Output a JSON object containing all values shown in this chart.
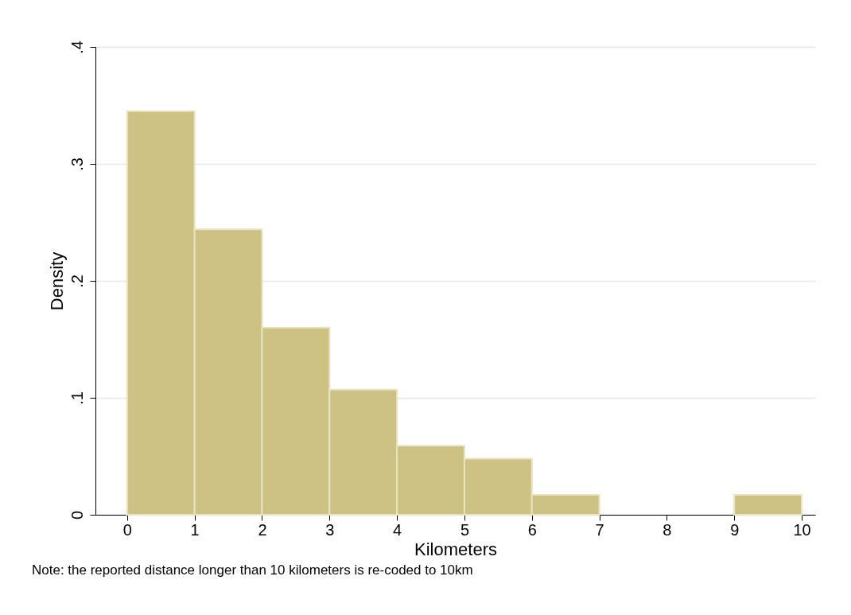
{
  "chart_data": {
    "type": "histogram",
    "xlabel": "Kilometers",
    "ylabel": "Density",
    "annotations": [
      "Note: the reported distance longer than 10 kilometers is re-coded to 10km"
    ],
    "bins": [
      0,
      1,
      2,
      3,
      4,
      5,
      6,
      7,
      8,
      9,
      10
    ],
    "values": [
      0.345,
      0.244,
      0.16,
      0.107,
      0.059,
      0.048,
      0.017,
      0,
      0,
      0.017
    ],
    "color": "#cdc283",
    "xlim": [
      -0.47,
      10.2
    ],
    "xticks": [
      0,
      1,
      2,
      3,
      4,
      5,
      6,
      7,
      8,
      9,
      10
    ],
    "ylim": [
      0,
      0.4
    ],
    "yticks": [
      0,
      {
        "value": 0.1,
        "label": ".1"
      },
      {
        "value": 0.2,
        "label": ".2"
      },
      {
        "value": 0.3,
        "label": ".3"
      },
      {
        "value": 0.4,
        "label": ".4"
      }
    ],
    "grid": "y"
  }
}
